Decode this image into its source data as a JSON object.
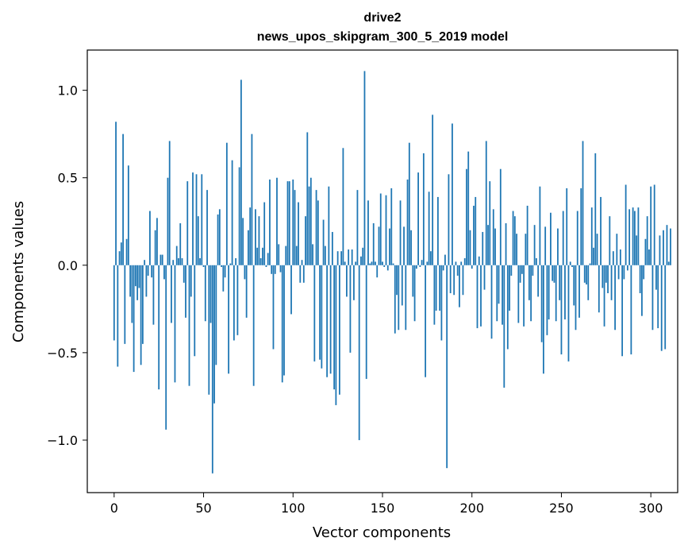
{
  "chart_data": {
    "type": "bar",
    "title_line1": "drive2",
    "title_line2": "news_upos_skipgram_300_5_2019 model",
    "xlabel": "Vector components",
    "ylabel": "Components values",
    "xlim": [
      -15,
      315
    ],
    "ylim": [
      -1.3,
      1.23
    ],
    "xticks": [
      0,
      50,
      100,
      150,
      200,
      250,
      300
    ],
    "xtick_labels": [
      "0",
      "50",
      "100",
      "150",
      "200",
      "250",
      "300"
    ],
    "yticks": [
      -1.0,
      -0.5,
      0.0,
      0.5,
      1.0
    ],
    "ytick_labels": [
      "−1.0",
      "−0.5",
      "0.0",
      "0.5",
      "1.0"
    ],
    "bar_color": "#1f77b4",
    "values": [
      -0.43,
      0.82,
      -0.58,
      0.08,
      0.13,
      0.75,
      -0.45,
      0.15,
      0.57,
      -0.18,
      -0.33,
      -0.61,
      -0.12,
      -0.2,
      -0.13,
      -0.57,
      -0.45,
      0.03,
      -0.18,
      -0.06,
      0.31,
      -0.07,
      -0.34,
      0.2,
      0.27,
      -0.71,
      0.06,
      0.06,
      -0.08,
      -0.94,
      0.5,
      0.71,
      -0.33,
      0.03,
      -0.67,
      0.11,
      0.04,
      0.24,
      0.04,
      -0.1,
      -0.3,
      0.48,
      -0.69,
      -0.18,
      0.53,
      -0.52,
      0.52,
      0.28,
      0.04,
      0.52,
      -0.01,
      -0.32,
      0.43,
      -0.74,
      -0.33,
      -1.19,
      -0.79,
      -0.57,
      0.29,
      0.32,
      -0.01,
      -0.15,
      -0.07,
      0.7,
      -0.62,
      0.01,
      0.6,
      -0.43,
      0.04,
      -0.4,
      0.56,
      1.06,
      0.27,
      -0.08,
      -0.3,
      0.2,
      0.33,
      0.75,
      -0.69,
      0.32,
      0.1,
      0.28,
      0.04,
      0.1,
      0.36,
      -0.01,
      0.07,
      0.49,
      -0.05,
      -0.48,
      -0.05,
      0.5,
      0.12,
      -0.04,
      -0.67,
      -0.63,
      0.11,
      0.48,
      0.48,
      -0.28,
      0.49,
      0.43,
      0.11,
      0.36,
      -0.1,
      0.03,
      -0.1,
      0.28,
      0.76,
      0.45,
      0.5,
      0.12,
      -0.55,
      0.43,
      0.37,
      -0.54,
      -0.59,
      0.26,
      0.11,
      -0.64,
      0.45,
      -0.62,
      0.19,
      -0.71,
      -0.8,
      0.08,
      -0.74,
      0.08,
      0.67,
      0.02,
      -0.18,
      0.09,
      -0.5,
      0.09,
      -0.2,
      0.02,
      0.43,
      -1.0,
      0.05,
      0.1,
      1.11,
      -0.65,
      0.37,
      0.01,
      0.02,
      0.24,
      0.02,
      -0.07,
      0.22,
      0.41,
      0.02,
      -0.01,
      0.4,
      -0.03,
      0.21,
      0.44,
      0.01,
      -0.39,
      -0.17,
      -0.37,
      0.37,
      -0.23,
      0.22,
      -0.37,
      0.49,
      0.7,
      0.2,
      -0.18,
      -0.32,
      -0.02,
      0.53,
      -0.01,
      0.03,
      0.64,
      -0.64,
      0.02,
      0.42,
      0.08,
      0.86,
      -0.34,
      -0.26,
      0.39,
      -0.26,
      -0.43,
      -0.03,
      0.06,
      -1.16,
      0.52,
      -0.16,
      0.81,
      -0.17,
      0.02,
      -0.06,
      -0.24,
      0.02,
      -0.17,
      0.04,
      0.55,
      0.65,
      0.2,
      -0.02,
      0.34,
      0.39,
      -0.36,
      0.05,
      -0.35,
      0.19,
      -0.14,
      0.71,
      0.23,
      0.48,
      -0.42,
      0.32,
      0.21,
      -0.32,
      -0.22,
      0.55,
      -0.34,
      -0.7,
      0.24,
      -0.48,
      -0.26,
      -0.06,
      0.31,
      0.28,
      0.18,
      -0.33,
      -0.1,
      -0.05,
      -0.35,
      0.18,
      0.34,
      -0.2,
      -0.32,
      -0.06,
      0.23,
      0.04,
      -0.18,
      0.45,
      -0.44,
      -0.62,
      0.22,
      -0.4,
      -0.31,
      0.3,
      -0.09,
      -0.1,
      -0.32,
      0.21,
      -0.2,
      -0.51,
      0.31,
      -0.31,
      0.44,
      -0.55,
      0.02,
      -0.01,
      -0.23,
      -0.37,
      0.31,
      -0.3,
      0.44,
      0.71,
      -0.1,
      -0.11,
      -0.2,
      0.01,
      0.33,
      0.1,
      0.64,
      0.18,
      -0.27,
      0.39,
      -0.13,
      -0.35,
      -0.1,
      -0.16,
      0.28,
      -0.2,
      0.08,
      -0.37,
      0.18,
      -0.08,
      0.09,
      -0.52,
      -0.08,
      0.46,
      -0.03,
      0.32,
      -0.51,
      0.33,
      0.31,
      0.17,
      0.33,
      -0.16,
      -0.29,
      -0.08,
      0.15,
      0.28,
      0.09,
      0.45,
      -0.37,
      0.46,
      -0.14,
      -0.36,
      0.17,
      -0.49,
      0.2,
      -0.48,
      0.23,
      0.02,
      0.21
    ]
  }
}
